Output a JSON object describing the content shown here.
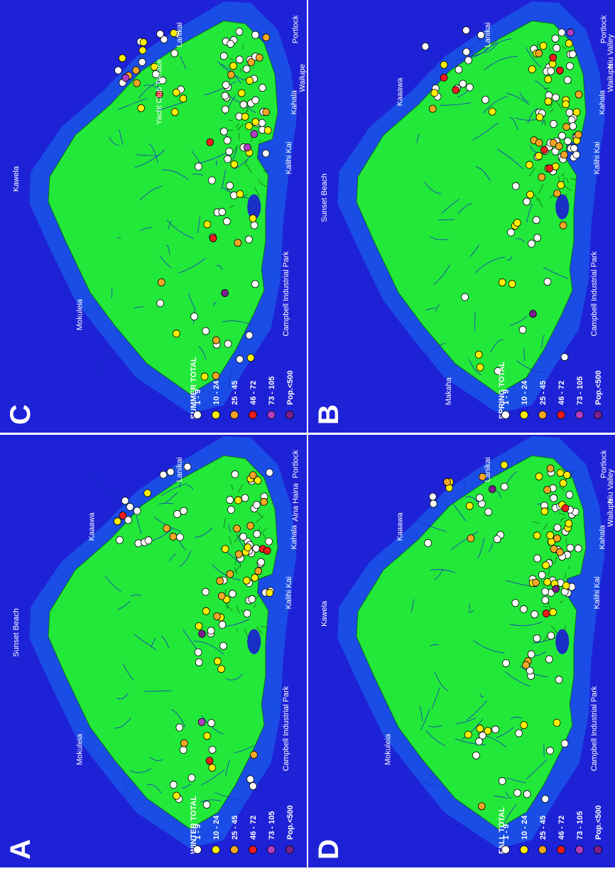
{
  "figure": {
    "panels": [
      {
        "letter": "A",
        "legend_title": "WINTER TOTAL",
        "places": [
          "Sunset Beach",
          "Mokuleia",
          "Kaaawa",
          "Lanikai",
          "Portlock",
          "Aina Haina",
          "Kahala",
          "Kalihi Kai",
          "Campbell Industrial Park"
        ],
        "sites": {
          "c5": 1,
          "c4": 1,
          "c3": 4,
          "c2": 14,
          "c1": 20,
          "c0": 60
        }
      },
      {
        "letter": "B",
        "legend_title": "SPRING TOTAL",
        "places": [
          "Sunset Beach",
          "Makaha",
          "Kaaawa",
          "Lanikai",
          "Portlock",
          "Niu Valley",
          "Wailupe",
          "Kahala",
          "Kalihi Kai",
          "Campbell Industrial Park"
        ],
        "sites": {
          "c5": 1,
          "c4": 1,
          "c3": 6,
          "c2": 14,
          "c1": 26,
          "c0": 60
        }
      },
      {
        "letter": "C",
        "legend_title": "SUMMER TOTAL",
        "places": [
          "Mokuleia",
          "Kawela",
          "Yacht Club Terrace",
          "Lanikai",
          "Portlock",
          "Wailupe",
          "Kahala",
          "Kalihi Kai",
          "Campbell Industrial Park"
        ],
        "sites": {
          "c5": 1,
          "c4": 3,
          "c3": 3,
          "c2": 12,
          "c1": 24,
          "c0": 60
        }
      },
      {
        "letter": "D",
        "legend_title": "FALL TOTAL",
        "places": [
          "Mokuleia",
          "Kawela",
          "Kaaawa",
          "Lanikai",
          "Portlock",
          "Niu Valley",
          "Wailupe",
          "Kahala",
          "Kalihi Kai",
          "Campbell Industrial Park"
        ],
        "sites": {
          "c5": 2,
          "c4": 0,
          "c3": 2,
          "c2": 12,
          "c1": 26,
          "c0": 60
        }
      }
    ],
    "legend_classes": [
      {
        "label": "Pop.<500",
        "color": "#7d1f8e"
      },
      {
        "label": "73 - 105",
        "color": "#b23cc4"
      },
      {
        "label": "46 - 72",
        "color": "#ee1c1c"
      },
      {
        "label": "25 - 45",
        "color": "#f5a623"
      },
      {
        "label": "10 - 24",
        "color": "#ffee00"
      },
      {
        "label": "1 - 9",
        "color": "#ffffff"
      }
    ],
    "colors": {
      "ocean": "#1e22d6",
      "shelf": "#1a4de6",
      "land": "#22e83a",
      "stream": "#1a2fc4"
    }
  }
}
